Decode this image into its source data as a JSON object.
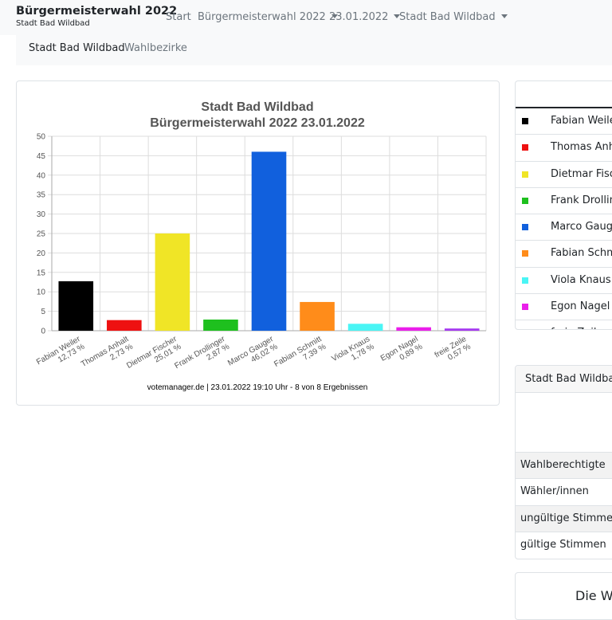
{
  "navbar": {
    "brand_title": "Bürgermeisterwahl 2022",
    "brand_subtitle": "Stadt Bad Wildbad",
    "items": [
      {
        "label": "Start",
        "dropdown": false
      },
      {
        "label": "Bürgermeisterwahl 2022",
        "dropdown": true
      },
      {
        "label": "23.01.2022",
        "dropdown": true
      },
      {
        "label": "Stadt Bad Wildbad",
        "dropdown": true
      }
    ]
  },
  "subnav": {
    "items": [
      {
        "label": "Stadt Bad Wildbad",
        "active": true
      },
      {
        "label": "Wahlbezirke",
        "active": false
      }
    ]
  },
  "chart_data": {
    "type": "bar",
    "title": "Stadt Bad Wildbad",
    "subtitle": "Bürgermeisterwahl 2022 23.01.2022",
    "categories": [
      "Fabian Weiler",
      "Thomas Anhalt",
      "Dietmar Fischer",
      "Frank Drollinger",
      "Marco Gauger",
      "Fabian Schmitt",
      "Viola Knaus",
      "Egon Nagel",
      "freie Zeile"
    ],
    "values": [
      12.73,
      2.73,
      25.01,
      2.87,
      46.02,
      7.39,
      1.78,
      0.89,
      0.57
    ],
    "value_labels": [
      "12,73 %",
      "2,73 %",
      "25,01 %",
      "2,87 %",
      "46,02 %",
      "7,39 %",
      "1,78 %",
      "0,89 %",
      "0,57 %"
    ],
    "colors": [
      "#000000",
      "#ee1111",
      "#f0e526",
      "#1ec01e",
      "#1160dd",
      "#ff8c1a",
      "#4af5f5",
      "#ea1fea",
      "#a53af0"
    ],
    "ylim": [
      0,
      50
    ],
    "yticks": [
      0,
      5,
      10,
      15,
      20,
      25,
      30,
      35,
      40,
      45,
      50
    ],
    "grid": true,
    "footer": "votemanager.de | 23.01.2022 19:10 Uhr - 8 von 8 Ergebnissen"
  },
  "candidates_table": {
    "rows": [
      {
        "name": "Fabian Weiler",
        "color": "#000000"
      },
      {
        "name": "Thomas Anhalt",
        "color": "#ee1111"
      },
      {
        "name": "Dietmar Fischer",
        "color": "#f0e526"
      },
      {
        "name": "Frank Drollinger",
        "color": "#1ec01e"
      },
      {
        "name": "Marco Gauger",
        "color": "#1160dd"
      },
      {
        "name": "Fabian Schmitt",
        "color": "#ff8c1a"
      },
      {
        "name": "Viola Knaus",
        "color": "#4af5f5"
      },
      {
        "name": "Egon Nagel",
        "color": "#ea1fea"
      },
      {
        "name": "freie Zeile",
        "color": "#a53af0"
      }
    ]
  },
  "stats": {
    "header": "Stadt Bad Wildbad",
    "rows": [
      "Wahlberechtigte",
      "Wähler/innen",
      "ungültige Stimmen",
      "gültige Stimmen"
    ]
  },
  "bottom_card": {
    "title": "Die Wa"
  }
}
